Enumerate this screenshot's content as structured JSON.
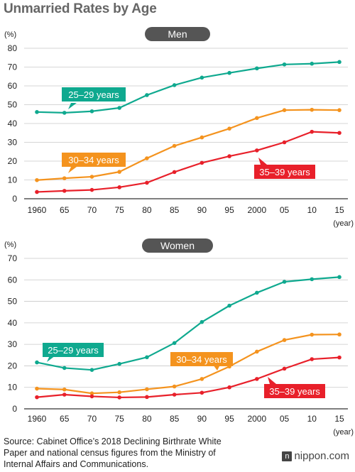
{
  "title": "Unmarried Rates by Age",
  "chart_data": [
    {
      "type": "line",
      "title": "Men",
      "ylabel": "(%)",
      "xlabel": "(year)",
      "categories": [
        "1960",
        "65",
        "70",
        "75",
        "80",
        "85",
        "90",
        "95",
        "2000",
        "05",
        "10",
        "15"
      ],
      "ylim": [
        0,
        80
      ],
      "yticks": [
        0,
        10,
        20,
        30,
        40,
        50,
        60,
        70,
        80
      ],
      "grid": true,
      "series": [
        {
          "name": "25–29 years",
          "color": "#0fa98f",
          "values": [
            46.1,
            45.7,
            46.5,
            48.3,
            55.1,
            60.4,
            64.4,
            66.9,
            69.3,
            71.4,
            71.8,
            72.7
          ]
        },
        {
          "name": "30–34 years",
          "color": "#f4931e",
          "values": [
            9.9,
            10.9,
            11.7,
            14.3,
            21.5,
            28.1,
            32.6,
            37.3,
            42.9,
            47.1,
            47.3,
            47.1
          ]
        },
        {
          "name": "35–39 years",
          "color": "#e8202a",
          "values": [
            3.6,
            4.2,
            4.7,
            6.1,
            8.5,
            14.2,
            19.1,
            22.6,
            25.7,
            30.0,
            35.6,
            35.0
          ]
        }
      ]
    },
    {
      "type": "line",
      "title": "Women",
      "ylabel": "(%)",
      "xlabel": "(year)",
      "categories": [
        "1960",
        "65",
        "70",
        "75",
        "80",
        "85",
        "90",
        "95",
        "2000",
        "05",
        "10",
        "15"
      ],
      "ylim": [
        0,
        70
      ],
      "yticks": [
        0,
        10,
        20,
        30,
        40,
        50,
        60,
        70
      ],
      "grid": true,
      "series": [
        {
          "name": "25–29 years",
          "color": "#0fa98f",
          "values": [
            21.6,
            19.0,
            18.1,
            20.9,
            24.0,
            30.6,
            40.4,
            48.0,
            54.0,
            59.1,
            60.3,
            61.3
          ]
        },
        {
          "name": "30–34 years",
          "color": "#f4931e",
          "values": [
            9.4,
            9.0,
            7.2,
            7.7,
            9.1,
            10.4,
            13.9,
            19.7,
            26.6,
            32.0,
            34.5,
            34.6
          ]
        },
        {
          "name": "35–39 years",
          "color": "#e8202a",
          "values": [
            5.4,
            6.6,
            5.8,
            5.3,
            5.5,
            6.6,
            7.5,
            10.0,
            13.9,
            18.7,
            23.1,
            23.9
          ]
        }
      ]
    }
  ],
  "source": "Source: Cabinet Office’s 2018 Declining Birthrate White Paper and national census figures from the Ministry of Internal Affairs and Communications.",
  "logo": {
    "mark": "n",
    "text": "nippon.com"
  }
}
